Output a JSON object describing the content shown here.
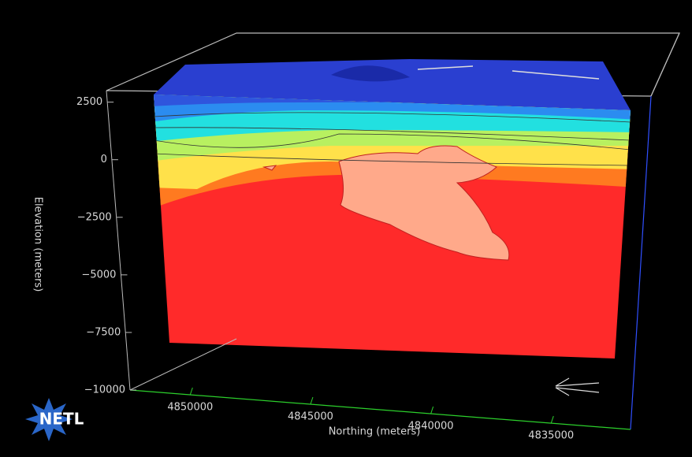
{
  "chart_data": {
    "type": "volume",
    "ylabel": "Elevation (meters)",
    "xlabel": "Northing (meters)",
    "ylim": [
      -10000,
      3000
    ],
    "yticks": [
      {
        "value": 2500,
        "label": "2500"
      },
      0,
      {
        "value": -2500,
        "label": "−2500"
      },
      {
        "value": -5000,
        "label": "−5000"
      },
      {
        "value": -7500,
        "label": "−7500"
      },
      {
        "value": -10000,
        "label": "−10000"
      }
    ],
    "xlim": [
      4852500,
      4831700
    ],
    "xticks": [
      4850000,
      4845000,
      4840000,
      4835000
    ],
    "logo": "NETL"
  }
}
